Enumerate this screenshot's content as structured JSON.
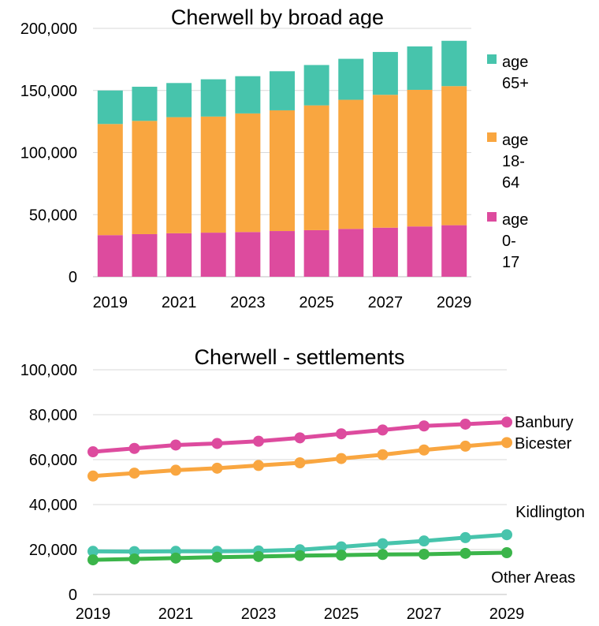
{
  "chart_data": [
    {
      "type": "bar",
      "stacked": true,
      "title": "Cherwell  by broad age",
      "xlabel": "",
      "ylabel": "",
      "categories": [
        "2019",
        "2020",
        "2021",
        "2022",
        "2023",
        "2024",
        "2025",
        "2026",
        "2027",
        "2028",
        "2029"
      ],
      "x_tick_labels": [
        "2019",
        "2021",
        "2023",
        "2025",
        "2027",
        "2029"
      ],
      "y_tick_labels": [
        "0",
        "50,000",
        "100,000",
        "150,000",
        "200,000"
      ],
      "ylim": [
        0,
        200000
      ],
      "legend_position": "right",
      "series": [
        {
          "name": "age 0-17",
          "legend_lines": [
            "age",
            "0-",
            "17"
          ],
          "color": "#dd4b9e",
          "values": [
            33500,
            34300,
            35000,
            35500,
            36000,
            36800,
            37500,
            38500,
            39500,
            40500,
            41500
          ]
        },
        {
          "name": "age 18-64",
          "legend_lines": [
            "age",
            "18-",
            "64"
          ],
          "color": "#f9a640",
          "values": [
            89500,
            91200,
            93500,
            93500,
            95500,
            97200,
            100500,
            104000,
            107000,
            110000,
            112000
          ]
        },
        {
          "name": "age 65+",
          "legend_lines": [
            "age",
            "65+"
          ],
          "color": "#47c4ac",
          "values": [
            27000,
            27500,
            27500,
            30000,
            30000,
            31500,
            32500,
            33000,
            34500,
            35000,
            36500
          ]
        }
      ]
    },
    {
      "type": "line",
      "title": "Cherwell - settlements",
      "xlabel": "",
      "ylabel": "",
      "x": [
        2019,
        2020,
        2021,
        2022,
        2023,
        2024,
        2025,
        2026,
        2027,
        2028,
        2029
      ],
      "x_tick_labels": [
        "2019",
        "2021",
        "2023",
        "2025",
        "2027",
        "2029"
      ],
      "y_tick_labels": [
        "0",
        "20,000",
        "40,000",
        "60,000",
        "80,000",
        "100,000"
      ],
      "ylim": [
        0,
        100000
      ],
      "legend_position": "inline-right",
      "series": [
        {
          "name": "Banbury",
          "color": "#dd4b9e",
          "values": [
            63500,
            65000,
            66500,
            67200,
            68200,
            69700,
            71500,
            73200,
            75000,
            75800,
            76700
          ]
        },
        {
          "name": "Bicester",
          "color": "#f9a640",
          "values": [
            52700,
            54000,
            55300,
            56200,
            57400,
            58600,
            60500,
            62200,
            64300,
            66000,
            67600
          ]
        },
        {
          "name": "Kidlington",
          "color": "#47c4ac",
          "values": [
            19200,
            19100,
            19200,
            19200,
            19400,
            19900,
            21200,
            22600,
            23800,
            25300,
            26600
          ]
        },
        {
          "name": "Other Areas",
          "color": "#3bb54a",
          "values": [
            15400,
            15800,
            16200,
            16600,
            16900,
            17300,
            17500,
            17800,
            17900,
            18300,
            18600
          ]
        }
      ]
    }
  ]
}
